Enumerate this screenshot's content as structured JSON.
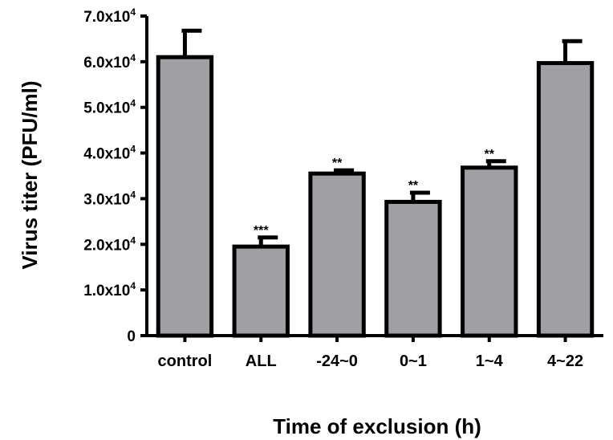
{
  "chart_data": {
    "type": "bar",
    "xlabel": "Time of exclusion (h)",
    "ylabel": "Virus titer (PFU/ml)",
    "categories": [
      "control",
      "ALL",
      "-24~0",
      "0~1",
      "1~4",
      "4~22"
    ],
    "values": [
      61000,
      19500,
      35500,
      29300,
      36800,
      59700
    ],
    "errors": [
      5800,
      2000,
      700,
      2000,
      1400,
      4800
    ],
    "significance": [
      "",
      "***",
      "**",
      "**",
      "**",
      ""
    ],
    "ylim": [
      0,
      70000
    ],
    "yticks": [
      {
        "value": 0,
        "mantissa": "0",
        "exponent": ""
      },
      {
        "value": 10000,
        "mantissa": "1.0x10",
        "exponent": "4"
      },
      {
        "value": 20000,
        "mantissa": "2.0x10",
        "exponent": "4"
      },
      {
        "value": 30000,
        "mantissa": "3.0x10",
        "exponent": "4"
      },
      {
        "value": 40000,
        "mantissa": "4.0x10",
        "exponent": "4"
      },
      {
        "value": 50000,
        "mantissa": "5.0x10",
        "exponent": "4"
      },
      {
        "value": 60000,
        "mantissa": "6.0x10",
        "exponent": "4"
      },
      {
        "value": 70000,
        "mantissa": "7.0x10",
        "exponent": "4"
      }
    ],
    "bar_color": "#a0a0a4",
    "grid": false,
    "legend": "none"
  }
}
